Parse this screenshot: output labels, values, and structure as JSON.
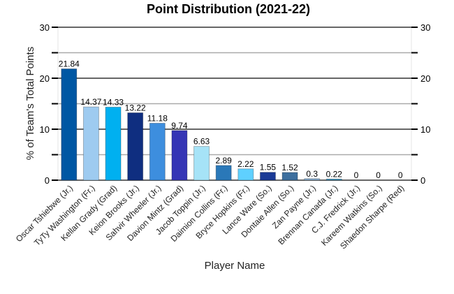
{
  "chart_data": {
    "type": "bar",
    "title": "Point Distribution (2021-22)",
    "xlabel": "Player Name",
    "ylabel": "% of Team's Total Points",
    "ylim": [
      0,
      30
    ],
    "yticks": [
      0,
      10,
      20,
      30
    ],
    "grid": true,
    "secondary_y_axis": true,
    "categories": [
      "Oscar Tshiebwe (Jr.)",
      "TyTy Washington (Fr.)",
      "Kellan Grady (Grad)",
      "Keion Brooks (Jr.)",
      "Sahvir Wheeler (Jr.)",
      "Davion Mintz (Grad)",
      "Jacob Toppin (Jr.)",
      "Daimion Collins (Fr.)",
      "Bryce Hopkins (Fr.)",
      "Lance Ware (So.)",
      "Dontaie Allen (So.)",
      "Zan Payne (Jr.)",
      "Brennan Canada (Jr.)",
      "C.J. Fredrick (Jr.)",
      "Kareem Watkins (So.)",
      "Shaedon Sharpe (Red)"
    ],
    "values": [
      21.84,
      14.37,
      14.33,
      13.22,
      11.18,
      9.74,
      6.63,
      2.89,
      2.22,
      1.55,
      1.52,
      0.3,
      0.22,
      0,
      0,
      0
    ],
    "data_labels": [
      "21.84",
      "14.37",
      "14.33",
      "13.22",
      "11.18",
      "9.74",
      "6.63",
      "2.89",
      "2.22",
      "1.55",
      "1.52",
      "0.3",
      "0.22",
      "0",
      "0",
      "0"
    ],
    "colors": [
      "#0057a3",
      "#9ecbf0",
      "#00b0f0",
      "#0f2e80",
      "#3d8ede",
      "#3535b5",
      "#a6e3f7",
      "#2a78b8",
      "#5fd0ff",
      "#1a3a96",
      "#3d6f9e",
      "#8aaed0",
      "#2a8ab8",
      "#cccccc",
      "#cccccc",
      "#cccccc"
    ]
  }
}
